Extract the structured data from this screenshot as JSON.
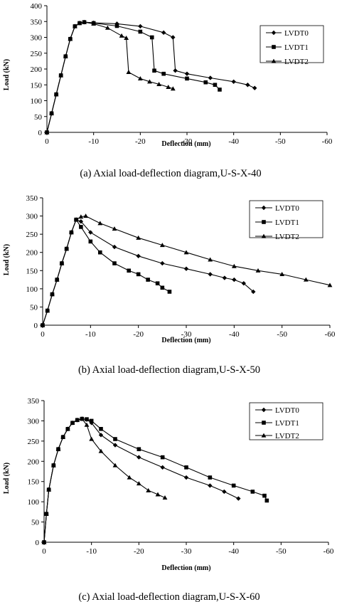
{
  "chart_data": [
    {
      "type": "line",
      "caption": "(a) Axial load-deflection diagram,U-S-X-40",
      "xlabel": "Deflection (mm)",
      "ylabel": "Load (kN)",
      "xlim": [
        0,
        -60
      ],
      "ylim": [
        0,
        400
      ],
      "xticks": [
        0,
        -10,
        -20,
        -30,
        -40,
        -50,
        -60
      ],
      "yticks": [
        0,
        50,
        100,
        150,
        200,
        250,
        300,
        350,
        400
      ],
      "xtick_labels": [
        "0",
        "-10",
        "-20",
        "-30",
        "-40",
        "-50",
        "-60"
      ],
      "ytick_labels": [
        "0",
        "50",
        "100",
        "150",
        "200",
        "250",
        "300",
        "350",
        "400"
      ],
      "grid": false,
      "legend_position": "top-right",
      "series": [
        {
          "name": "LVDT0",
          "marker": "diamond",
          "x": [
            0,
            -1,
            -2,
            -3,
            -4,
            -5,
            -6,
            -7,
            -8,
            -10,
            -15,
            -20,
            -25,
            -27,
            -27.5,
            -30,
            -35,
            -40,
            -43,
            -44.5
          ],
          "y": [
            0,
            60,
            120,
            180,
            240,
            295,
            335,
            345,
            348,
            346,
            343,
            335,
            315,
            300,
            195,
            185,
            172,
            160,
            150,
            140
          ]
        },
        {
          "name": "LVDT1",
          "marker": "square",
          "x": [
            0,
            -1,
            -2,
            -3,
            -4,
            -5,
            -6,
            -7,
            -8,
            -10,
            -15,
            -20,
            -22.5,
            -23,
            -25,
            -30,
            -34,
            -36,
            -37
          ],
          "y": [
            0,
            60,
            120,
            180,
            240,
            295,
            335,
            345,
            348,
            345,
            336,
            318,
            300,
            195,
            185,
            170,
            158,
            150,
            135
          ]
        },
        {
          "name": "LVDT2",
          "marker": "triangle",
          "x": [
            0,
            -1,
            -2,
            -3,
            -4,
            -5,
            -6,
            -7,
            -8,
            -10,
            -13,
            -16,
            -17,
            -17.5,
            -20,
            -22,
            -24,
            -26,
            -27
          ],
          "y": [
            0,
            60,
            120,
            180,
            240,
            295,
            335,
            345,
            348,
            343,
            330,
            305,
            298,
            190,
            170,
            160,
            152,
            143,
            138
          ]
        }
      ]
    },
    {
      "type": "line",
      "caption": "(b) Axial load-deflection diagram,U-S-X-50",
      "xlabel": "Deflection (mm)",
      "ylabel": "Load (kN)",
      "xlim": [
        0,
        -60
      ],
      "ylim": [
        0,
        350
      ],
      "xticks": [
        0,
        -10,
        -20,
        -30,
        -40,
        -50,
        -60
      ],
      "yticks": [
        0,
        50,
        100,
        150,
        200,
        250,
        300,
        350
      ],
      "xtick_labels": [
        "0",
        "-10",
        "-20",
        "-30",
        "-40",
        "-50",
        "-60"
      ],
      "ytick_labels": [
        "0",
        "50",
        "100",
        "150",
        "200",
        "250",
        "300",
        "350"
      ],
      "grid": false,
      "legend_position": "top-right",
      "series": [
        {
          "name": "LVDT0",
          "marker": "diamond",
          "x": [
            0,
            -1,
            -2,
            -3,
            -4,
            -5,
            -6,
            -7,
            -8,
            -10,
            -15,
            -20,
            -25,
            -30,
            -35,
            -38,
            -40,
            -42,
            -44
          ],
          "y": [
            0,
            40,
            85,
            125,
            170,
            210,
            255,
            290,
            285,
            255,
            215,
            190,
            170,
            155,
            140,
            130,
            125,
            115,
            92
          ]
        },
        {
          "name": "LVDT1",
          "marker": "square",
          "x": [
            0,
            -1,
            -2,
            -3,
            -4,
            -5,
            -6,
            -7,
            -8,
            -10,
            -12,
            -15,
            -18,
            -20,
            -22,
            -24,
            -25,
            -26.5
          ],
          "y": [
            0,
            40,
            85,
            125,
            170,
            210,
            255,
            290,
            270,
            230,
            200,
            170,
            150,
            140,
            125,
            115,
            103,
            92
          ]
        },
        {
          "name": "LVDT2",
          "marker": "triangle",
          "x": [
            0,
            -1,
            -2,
            -3,
            -4,
            -5,
            -6,
            -7,
            -8,
            -9,
            -12,
            -15,
            -20,
            -25,
            -30,
            -35,
            -40,
            -45,
            -50,
            -55,
            -60
          ],
          "y": [
            0,
            40,
            85,
            125,
            170,
            210,
            255,
            290,
            298,
            300,
            280,
            265,
            240,
            220,
            200,
            180,
            162,
            150,
            140,
            125,
            110
          ]
        }
      ]
    },
    {
      "type": "line",
      "caption": "(c) Axial load-deflection diagram,U-S-X-60",
      "xlabel": "Deflection (mm)",
      "ylabel": "Load (kN)",
      "xlim": [
        0,
        -60
      ],
      "ylim": [
        0,
        350
      ],
      "xticks": [
        0,
        -10,
        -20,
        -30,
        -40,
        -50,
        -60
      ],
      "yticks": [
        0,
        50,
        100,
        150,
        200,
        250,
        300,
        350
      ],
      "xtick_labels": [
        "0",
        "-10",
        "-20",
        "-30",
        "-40",
        "-50",
        "-60"
      ],
      "ytick_labels": [
        "0",
        "50",
        "100",
        "150",
        "200",
        "250",
        "300",
        "350"
      ],
      "grid": false,
      "legend_position": "top-right",
      "series": [
        {
          "name": "LVDT0",
          "marker": "diamond",
          "x": [
            0,
            -0.5,
            -1,
            -2,
            -3,
            -4,
            -5,
            -6,
            -7,
            -8,
            -9,
            -10,
            -12,
            -15,
            -20,
            -25,
            -30,
            -35,
            -38,
            -41
          ],
          "y": [
            0,
            70,
            130,
            190,
            230,
            260,
            280,
            295,
            302,
            305,
            303,
            295,
            265,
            240,
            210,
            185,
            160,
            140,
            125,
            108
          ]
        },
        {
          "name": "LVDT1",
          "marker": "square",
          "x": [
            0,
            -0.5,
            -1,
            -2,
            -3,
            -4,
            -5,
            -6,
            -7,
            -8,
            -9,
            -10,
            -12,
            -15,
            -20,
            -25,
            -30,
            -35,
            -40,
            -44,
            -46.5,
            -47
          ],
          "y": [
            0,
            70,
            130,
            190,
            230,
            260,
            280,
            295,
            302,
            305,
            304,
            300,
            280,
            255,
            230,
            210,
            185,
            160,
            140,
            125,
            115,
            103
          ]
        },
        {
          "name": "LVDT2",
          "marker": "triangle",
          "x": [
            0,
            -0.5,
            -1,
            -2,
            -3,
            -4,
            -5,
            -6,
            -7,
            -8,
            -9,
            -10,
            -12,
            -15,
            -18,
            -20,
            -22,
            -24,
            -25.5
          ],
          "y": [
            0,
            70,
            130,
            190,
            230,
            260,
            280,
            295,
            302,
            305,
            290,
            255,
            225,
            190,
            160,
            145,
            128,
            118,
            110
          ]
        }
      ]
    }
  ]
}
